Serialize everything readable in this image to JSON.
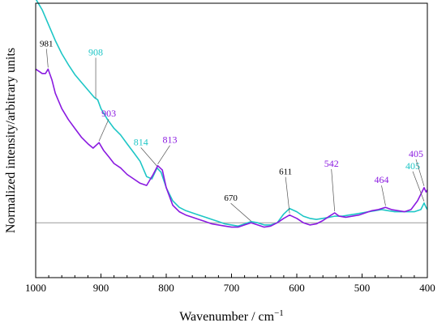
{
  "chart_data": {
    "type": "line",
    "title": "",
    "xlabel": "Wavenumber / cm",
    "xlabel_sup": "−1",
    "ylabel": "Normalized intensity/arbitrary units",
    "xlim": [
      1000,
      400
    ],
    "x_reversed": true,
    "ylim": [
      -0.25,
      1.0
    ],
    "x_ticks": [
      1000,
      900,
      800,
      700,
      600,
      500,
      400
    ],
    "y_ticks_labeled": false,
    "grid": false,
    "baseline": 0,
    "colors": {
      "violet": "#8a1ae0",
      "cyan": "#1ec6c6",
      "baseline": "#9a9a9a",
      "black_label": "#000000"
    },
    "series": [
      {
        "color": "#1ec6c6",
        "points": [
          [
            1000,
            1.02
          ],
          [
            990,
            0.97
          ],
          [
            980,
            0.9
          ],
          [
            970,
            0.83
          ],
          [
            960,
            0.77
          ],
          [
            950,
            0.72
          ],
          [
            940,
            0.675
          ],
          [
            930,
            0.64
          ],
          [
            920,
            0.605
          ],
          [
            910,
            0.57
          ],
          [
            905,
            0.56
          ],
          [
            900,
            0.52
          ],
          [
            890,
            0.47
          ],
          [
            880,
            0.43
          ],
          [
            870,
            0.4
          ],
          [
            860,
            0.36
          ],
          [
            850,
            0.32
          ],
          [
            840,
            0.28
          ],
          [
            830,
            0.21
          ],
          [
            822,
            0.2
          ],
          [
            814,
            0.25
          ],
          [
            808,
            0.23
          ],
          [
            800,
            0.16
          ],
          [
            790,
            0.1
          ],
          [
            780,
            0.07
          ],
          [
            770,
            0.055
          ],
          [
            760,
            0.045
          ],
          [
            750,
            0.035
          ],
          [
            740,
            0.025
          ],
          [
            730,
            0.015
          ],
          [
            720,
            0.005
          ],
          [
            710,
            -0.005
          ],
          [
            700,
            -0.01
          ],
          [
            690,
            -0.015
          ],
          [
            680,
            -0.005
          ],
          [
            670,
            0.005
          ],
          [
            660,
            0.0
          ],
          [
            650,
            -0.01
          ],
          [
            640,
            -0.01
          ],
          [
            630,
            0.0
          ],
          [
            620,
            0.04
          ],
          [
            611,
            0.065
          ],
          [
            600,
            0.05
          ],
          [
            590,
            0.03
          ],
          [
            580,
            0.02
          ],
          [
            570,
            0.015
          ],
          [
            560,
            0.02
          ],
          [
            550,
            0.025
          ],
          [
            542,
            0.03
          ],
          [
            530,
            0.03
          ],
          [
            520,
            0.035
          ],
          [
            510,
            0.04
          ],
          [
            500,
            0.045
          ],
          [
            490,
            0.05
          ],
          [
            480,
            0.055
          ],
          [
            470,
            0.06
          ],
          [
            460,
            0.055
          ],
          [
            450,
            0.05
          ],
          [
            440,
            0.05
          ],
          [
            430,
            0.05
          ],
          [
            420,
            0.05
          ],
          [
            410,
            0.06
          ],
          [
            405,
            0.09
          ],
          [
            402,
            0.07
          ],
          [
            400,
            0.06
          ]
        ]
      },
      {
        "color": "#8a1ae0",
        "points": [
          [
            1000,
            0.7
          ],
          [
            995,
            0.69
          ],
          [
            990,
            0.68
          ],
          [
            985,
            0.68
          ],
          [
            981,
            0.7
          ],
          [
            975,
            0.65
          ],
          [
            970,
            0.59
          ],
          [
            960,
            0.52
          ],
          [
            950,
            0.47
          ],
          [
            940,
            0.43
          ],
          [
            930,
            0.39
          ],
          [
            920,
            0.36
          ],
          [
            912,
            0.34
          ],
          [
            903,
            0.365
          ],
          [
            896,
            0.33
          ],
          [
            888,
            0.3
          ],
          [
            880,
            0.27
          ],
          [
            870,
            0.25
          ],
          [
            860,
            0.22
          ],
          [
            850,
            0.2
          ],
          [
            840,
            0.18
          ],
          [
            830,
            0.17
          ],
          [
            820,
            0.22
          ],
          [
            813,
            0.26
          ],
          [
            806,
            0.24
          ],
          [
            800,
            0.16
          ],
          [
            790,
            0.08
          ],
          [
            780,
            0.05
          ],
          [
            770,
            0.035
          ],
          [
            760,
            0.025
          ],
          [
            750,
            0.015
          ],
          [
            740,
            0.005
          ],
          [
            730,
            -0.005
          ],
          [
            720,
            -0.01
          ],
          [
            710,
            -0.015
          ],
          [
            700,
            -0.02
          ],
          [
            690,
            -0.02
          ],
          [
            680,
            -0.01
          ],
          [
            670,
            0.0
          ],
          [
            660,
            -0.01
          ],
          [
            650,
            -0.02
          ],
          [
            640,
            -0.015
          ],
          [
            630,
            0.0
          ],
          [
            620,
            0.02
          ],
          [
            611,
            0.035
          ],
          [
            600,
            0.02
          ],
          [
            590,
            0.0
          ],
          [
            580,
            -0.01
          ],
          [
            570,
            -0.005
          ],
          [
            560,
            0.01
          ],
          [
            550,
            0.03
          ],
          [
            542,
            0.045
          ],
          [
            535,
            0.03
          ],
          [
            525,
            0.025
          ],
          [
            515,
            0.03
          ],
          [
            505,
            0.035
          ],
          [
            495,
            0.045
          ],
          [
            485,
            0.055
          ],
          [
            475,
            0.06
          ],
          [
            464,
            0.07
          ],
          [
            455,
            0.06
          ],
          [
            445,
            0.055
          ],
          [
            435,
            0.05
          ],
          [
            425,
            0.06
          ],
          [
            415,
            0.1
          ],
          [
            410,
            0.13
          ],
          [
            405,
            0.16
          ],
          [
            402,
            0.14
          ],
          [
            400,
            0.15
          ]
        ]
      }
    ],
    "annotations": [
      {
        "text": "981",
        "x": 981,
        "y": 0.7,
        "color": "#000000",
        "dx": -2,
        "dy": -28,
        "size": "small"
      },
      {
        "text": "908",
        "x": 908,
        "y": 0.56,
        "color": "#1ec6c6",
        "dx": 0,
        "dy": -55,
        "size": "big"
      },
      {
        "text": "903",
        "x": 903,
        "y": 0.365,
        "color": "#8a1ae0",
        "dx": 12,
        "dy": -32,
        "size": "big"
      },
      {
        "text": "814",
        "x": 814,
        "y": 0.25,
        "color": "#1ec6c6",
        "dx": -20,
        "dy": -28,
        "size": "big"
      },
      {
        "text": "813",
        "x": 813,
        "y": 0.26,
        "color": "#8a1ae0",
        "dx": 15,
        "dy": -28,
        "size": "big"
      },
      {
        "text": "670",
        "x": 670,
        "y": 0.0,
        "color": "#000000",
        "dx": -25,
        "dy": -27,
        "size": "small"
      },
      {
        "text": "611",
        "x": 611,
        "y": 0.035,
        "color": "#000000",
        "dx": -5,
        "dy": -50,
        "size": "small"
      },
      {
        "text": "542",
        "x": 542,
        "y": 0.045,
        "color": "#8a1ae0",
        "dx": -4,
        "dy": -57,
        "size": "big"
      },
      {
        "text": "464",
        "x": 464,
        "y": 0.07,
        "color": "#8a1ae0",
        "dx": -5,
        "dy": -30,
        "size": "big"
      },
      {
        "text": "405",
        "x": 405,
        "y": 0.09,
        "color": "#1ec6c6",
        "dx": -14,
        "dy": -42,
        "size": "big"
      },
      {
        "text": "405",
        "x": 405,
        "y": 0.16,
        "color": "#8a1ae0",
        "dx": -10,
        "dy": -38,
        "size": "big"
      }
    ]
  }
}
